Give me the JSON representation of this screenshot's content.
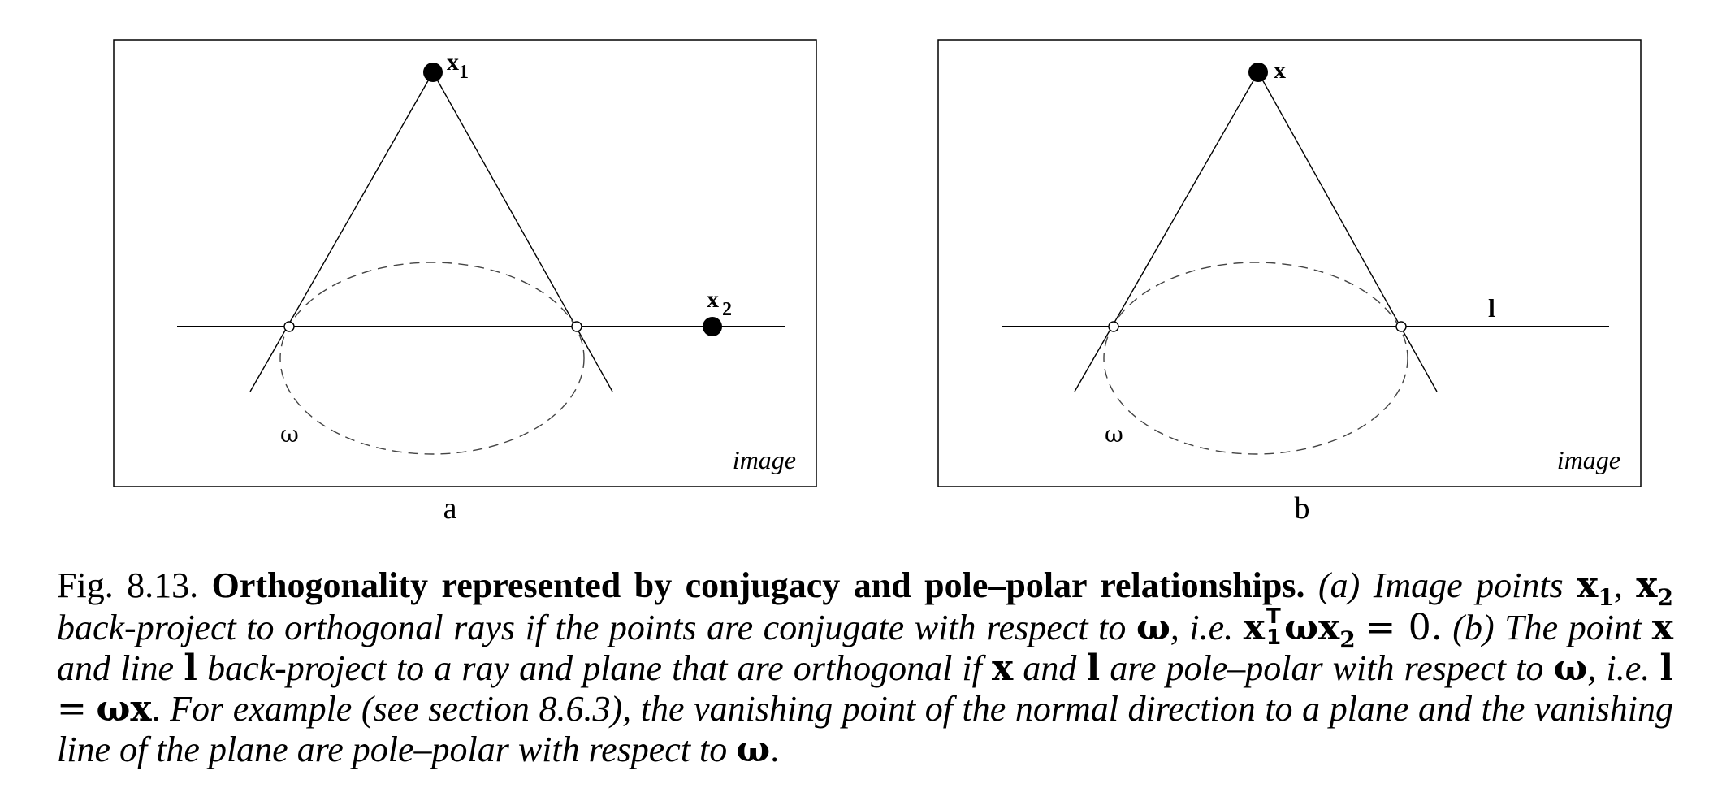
{
  "panels": [
    {
      "id": "a",
      "panel_label": "a",
      "image_label": "image",
      "conic_label": "ω",
      "point_label_main": "x",
      "point_label_sub": "1",
      "point2_label_main": "x",
      "point2_label_sub": "2"
    },
    {
      "id": "b",
      "panel_label": "b",
      "image_label": "image",
      "conic_label": "ω",
      "point_label_main": "x",
      "line_label": "l"
    }
  ],
  "caption": {
    "fig_number": "Fig. 8.13.",
    "title": "Orthogonality represented by conjugacy and pole–polar relationships.",
    "part_a_intro": "(a) Image points",
    "x": "x",
    "sub1": "1",
    "sub2": "2",
    "comma": ",",
    "part_a_text": "back-project to orthogonal rays if the points are conjugate with respect to",
    "omega": "ω",
    "ie": ", i.e.",
    "transpose": "T",
    "eq_zero": "= 0.",
    "part_b_intro": "(b) The point",
    "and_line": "and line",
    "l": "l",
    "part_b_text": "back-project to a ray and plane that are orthogonal if",
    "and": "and",
    "are_pole_polar": "are pole–polar with respect to",
    "equals": "=",
    "period": ".",
    "example_text": "For example (see section 8.6.3), the vanishing point of the normal direction to a plane and the vanishing line of the plane are pole–polar with respect to"
  }
}
